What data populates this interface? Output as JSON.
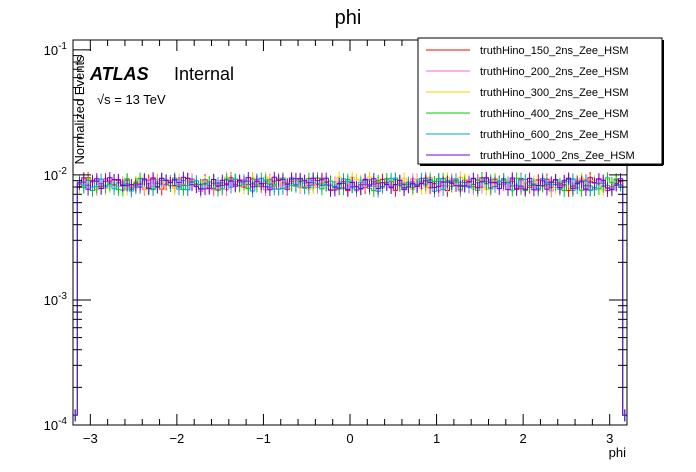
{
  "chart_data": {
    "type": "line",
    "title": "phi",
    "xlabel": "phi",
    "ylabel": "Normalized Events",
    "xlim": [
      -3.2,
      3.2
    ],
    "ylim": [
      0.0001,
      0.12
    ],
    "yscale": "log",
    "x_ticks": [
      "−3",
      "−2",
      "−1",
      "0",
      "1",
      "2",
      "3"
    ],
    "x_tick_values": [
      -3,
      -2,
      -1,
      0,
      1,
      2,
      3
    ],
    "y_ticks": [
      "10^{-4}",
      "10^{-3}",
      "10^{-2}",
      "10^{-1}"
    ],
    "y_tick_values": [
      0.0001,
      0.001,
      0.01,
      0.1
    ],
    "n_bins": 128,
    "nominal_bin_value": 0.0085,
    "edge_bin_value": 0.00012,
    "series": [
      {
        "name": "truthHino_150_2ns_Zee_HSM",
        "color": "#ff0000",
        "level": 0.0085,
        "spread": 0.12
      },
      {
        "name": "truthHino_200_2ns_Zee_HSM",
        "color": "#ff66cc",
        "level": 0.0084,
        "spread": 0.12
      },
      {
        "name": "truthHino_300_2ns_Zee_HSM",
        "color": "#ffcc00",
        "level": 0.0086,
        "spread": 0.12
      },
      {
        "name": "truthHino_400_2ns_Zee_HSM",
        "color": "#00cc00",
        "level": 0.0085,
        "spread": 0.12
      },
      {
        "name": "truthHino_600_2ns_Zee_HSM",
        "color": "#00aacc",
        "level": 0.0084,
        "spread": 0.12
      },
      {
        "name": "truthHino_1000_2ns_Zee_HSM",
        "color": "#7700dd",
        "level": 0.0086,
        "spread": 0.12
      }
    ]
  },
  "atlas_label": {
    "experiment": "ATLAS",
    "status": "Internal",
    "energy": "√s = 13 TeV"
  }
}
